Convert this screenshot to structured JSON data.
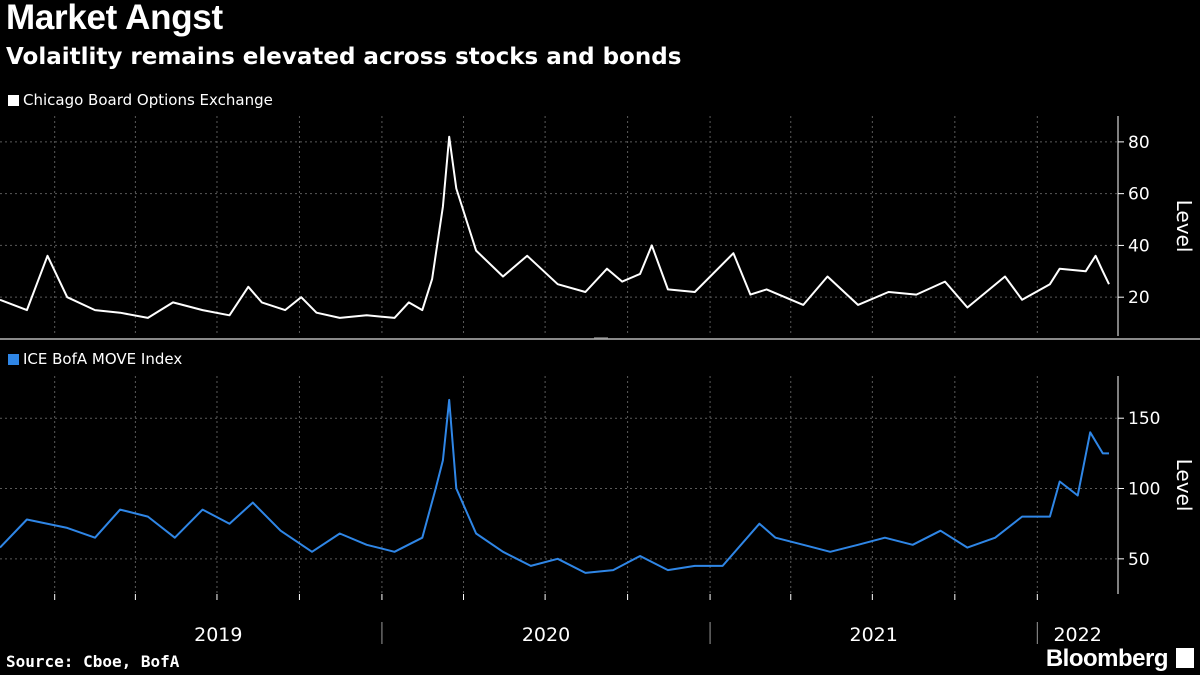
{
  "header": {
    "title": "Market Angst",
    "subtitle": "Volaitlity remains elevated across stocks and bonds"
  },
  "footer": {
    "source": "Source: Cboe, BofA",
    "brand": "Bloomberg"
  },
  "colors": {
    "background": "#000000",
    "vix_line": "#ffffff",
    "move_line": "#2f86e6",
    "grid": "#5a5a5a",
    "axis_text": "#ffffff"
  },
  "x_axis": {
    "year_labels": [
      "2019",
      "2020",
      "2021",
      "2022"
    ]
  },
  "chart_data": [
    {
      "type": "line",
      "legend": "Chicago Board Options Exchange",
      "ylabel": "Level",
      "ylim": [
        5,
        90
      ],
      "yticks": [
        20,
        40,
        60,
        80
      ],
      "xlim": [
        "2018-11-01",
        "2022-04-01"
      ],
      "grid": true,
      "series": [
        {
          "name": "Chicago Board Options Exchange",
          "x": [
            "2018-11-01",
            "2018-12-01",
            "2018-12-24",
            "2019-01-15",
            "2019-02-15",
            "2019-03-15",
            "2019-04-15",
            "2019-05-13",
            "2019-06-15",
            "2019-07-15",
            "2019-08-05",
            "2019-08-20",
            "2019-09-15",
            "2019-10-03",
            "2019-10-20",
            "2019-11-15",
            "2019-12-15",
            "2020-01-15",
            "2020-01-31",
            "2020-02-15",
            "2020-02-26",
            "2020-03-09",
            "2020-03-16",
            "2020-03-24",
            "2020-04-15",
            "2020-05-15",
            "2020-06-11",
            "2020-07-15",
            "2020-08-15",
            "2020-09-08",
            "2020-09-25",
            "2020-10-15",
            "2020-10-28",
            "2020-11-15",
            "2020-12-15",
            "2021-01-27",
            "2021-02-15",
            "2021-03-05",
            "2021-04-15",
            "2021-05-12",
            "2021-06-15",
            "2021-07-19",
            "2021-08-19",
            "2021-09-20",
            "2021-10-15",
            "2021-11-26",
            "2021-12-15",
            "2022-01-15",
            "2022-01-26",
            "2022-02-24",
            "2022-03-07",
            "2022-03-15",
            "2022-03-22"
          ],
          "values": [
            19,
            15,
            36,
            20,
            15,
            14,
            12,
            18,
            15,
            13,
            24,
            18,
            15,
            20,
            14,
            12,
            13,
            12,
            18,
            15,
            27,
            55,
            82,
            62,
            38,
            28,
            36,
            25,
            22,
            31,
            26,
            29,
            40,
            23,
            22,
            37,
            21,
            23,
            17,
            28,
            17,
            22,
            21,
            26,
            16,
            28,
            19,
            25,
            31,
            30,
            36,
            30,
            25
          ]
        }
      ]
    },
    {
      "type": "line",
      "legend": "ICE BofA MOVE Index",
      "ylabel": "Level",
      "ylim": [
        25,
        180
      ],
      "yticks": [
        50,
        100,
        150
      ],
      "xlim": [
        "2018-11-01",
        "2022-04-01"
      ],
      "grid": true,
      "series": [
        {
          "name": "ICE BofA MOVE Index",
          "x": [
            "2018-11-01",
            "2018-12-01",
            "2019-01-15",
            "2019-02-15",
            "2019-03-15",
            "2019-04-15",
            "2019-05-15",
            "2019-06-15",
            "2019-07-15",
            "2019-08-10",
            "2019-09-10",
            "2019-10-15",
            "2019-11-15",
            "2019-12-15",
            "2020-01-15",
            "2020-02-15",
            "2020-03-01",
            "2020-03-09",
            "2020-03-16",
            "2020-03-24",
            "2020-04-15",
            "2020-05-15",
            "2020-06-15",
            "2020-07-15",
            "2020-08-15",
            "2020-09-15",
            "2020-10-15",
            "2020-11-15",
            "2020-12-15",
            "2021-01-15",
            "2021-02-25",
            "2021-03-15",
            "2021-04-15",
            "2021-05-15",
            "2021-06-15",
            "2021-07-15",
            "2021-08-15",
            "2021-09-15",
            "2021-10-15",
            "2021-11-15",
            "2021-12-15",
            "2022-01-15",
            "2022-01-26",
            "2022-02-15",
            "2022-03-01",
            "2022-03-15",
            "2022-03-22"
          ],
          "values": [
            58,
            78,
            72,
            65,
            85,
            80,
            65,
            85,
            75,
            90,
            70,
            55,
            68,
            60,
            55,
            65,
            100,
            120,
            163,
            100,
            68,
            55,
            45,
            50,
            40,
            42,
            52,
            42,
            45,
            45,
            75,
            65,
            60,
            55,
            60,
            65,
            60,
            70,
            58,
            65,
            80,
            80,
            105,
            95,
            140,
            125,
            125
          ]
        }
      ]
    }
  ]
}
